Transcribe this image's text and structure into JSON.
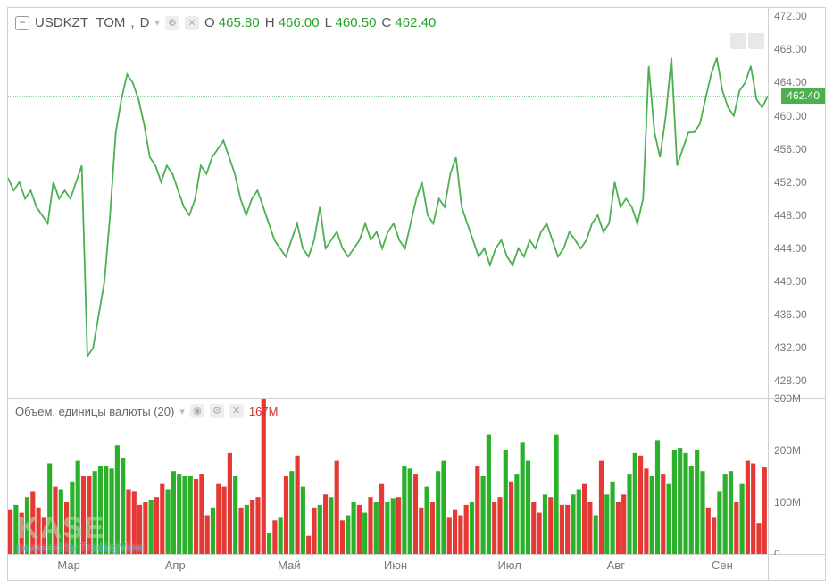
{
  "symbol": {
    "name": "USDKZT_TOM",
    "interval": "D",
    "ohlc": {
      "O": "465.80",
      "H": "466.00",
      "L": "460.50",
      "C": "462.40"
    }
  },
  "price_chart": {
    "type": "line",
    "line_color": "#4caf50",
    "line_width": 1.8,
    "background_color": "#ffffff",
    "ylim": [
      426,
      473
    ],
    "ytick_step": 4,
    "yticks": [
      "428.00",
      "432.00",
      "436.00",
      "440.00",
      "444.00",
      "448.00",
      "452.00",
      "456.00",
      "460.00",
      "464.00",
      "468.00",
      "472.00"
    ],
    "current_price": 462.4,
    "ref_line_color": "#4caf50",
    "price_tag_bg": "#4caf50",
    "price_tag_text": "462.40",
    "xticks": [
      "Мар",
      "Апр",
      "Май",
      "Июн",
      "Июл",
      "Авг",
      "Сен"
    ],
    "series": [
      452.5,
      451,
      452,
      450,
      451,
      449,
      448,
      447,
      452,
      450,
      451,
      450,
      452,
      454,
      431,
      432,
      436,
      440,
      448,
      458,
      462,
      465,
      464,
      462,
      459,
      455,
      454,
      452,
      454,
      453,
      451,
      449,
      448,
      450,
      454,
      453,
      455,
      456,
      457,
      455,
      453,
      450,
      448,
      450,
      451,
      449,
      447,
      445,
      444,
      443,
      445,
      447,
      444,
      443,
      445,
      449,
      444,
      445,
      446,
      444,
      443,
      444,
      445,
      447,
      445,
      446,
      444,
      446,
      447,
      445,
      444,
      447,
      450,
      452,
      448,
      447,
      450,
      449,
      453,
      455,
      449,
      447,
      445,
      443,
      444,
      442,
      444,
      445,
      443,
      442,
      444,
      443,
      445,
      444,
      446,
      447,
      445,
      443,
      444,
      446,
      445,
      444,
      445,
      447,
      448,
      446,
      447,
      452,
      449,
      450,
      449,
      447,
      450,
      466,
      458,
      455,
      460,
      467,
      454,
      456,
      458,
      458,
      459,
      462,
      465,
      467,
      463,
      461,
      460,
      463,
      464,
      466,
      462,
      461,
      462.4
    ]
  },
  "volume_panel": {
    "title": "Объем, единицы валюты (20)",
    "current_value_label": "167M",
    "value_color": "#d32f2f",
    "ylim": [
      0,
      300
    ],
    "yticks": [
      "0",
      "100M",
      "200M",
      "300M"
    ],
    "up_color": "#2bb02b",
    "down_color": "#e53935",
    "bars": [
      {
        "v": 85,
        "c": "d"
      },
      {
        "v": 95,
        "c": "u"
      },
      {
        "v": 80,
        "c": "d"
      },
      {
        "v": 110,
        "c": "u"
      },
      {
        "v": 120,
        "c": "d"
      },
      {
        "v": 90,
        "c": "d"
      },
      {
        "v": 70,
        "c": "d"
      },
      {
        "v": 175,
        "c": "u"
      },
      {
        "v": 130,
        "c": "d"
      },
      {
        "v": 125,
        "c": "u"
      },
      {
        "v": 100,
        "c": "d"
      },
      {
        "v": 140,
        "c": "u"
      },
      {
        "v": 180,
        "c": "u"
      },
      {
        "v": 150,
        "c": "d"
      },
      {
        "v": 150,
        "c": "d"
      },
      {
        "v": 160,
        "c": "u"
      },
      {
        "v": 170,
        "c": "u"
      },
      {
        "v": 170,
        "c": "u"
      },
      {
        "v": 165,
        "c": "u"
      },
      {
        "v": 210,
        "c": "u"
      },
      {
        "v": 185,
        "c": "u"
      },
      {
        "v": 125,
        "c": "d"
      },
      {
        "v": 120,
        "c": "d"
      },
      {
        "v": 95,
        "c": "d"
      },
      {
        "v": 100,
        "c": "d"
      },
      {
        "v": 105,
        "c": "u"
      },
      {
        "v": 110,
        "c": "d"
      },
      {
        "v": 135,
        "c": "d"
      },
      {
        "v": 125,
        "c": "u"
      },
      {
        "v": 160,
        "c": "u"
      },
      {
        "v": 155,
        "c": "u"
      },
      {
        "v": 150,
        "c": "u"
      },
      {
        "v": 150,
        "c": "u"
      },
      {
        "v": 145,
        "c": "d"
      },
      {
        "v": 155,
        "c": "d"
      },
      {
        "v": 75,
        "c": "d"
      },
      {
        "v": 90,
        "c": "u"
      },
      {
        "v": 135,
        "c": "d"
      },
      {
        "v": 130,
        "c": "d"
      },
      {
        "v": 195,
        "c": "d"
      },
      {
        "v": 150,
        "c": "u"
      },
      {
        "v": 90,
        "c": "d"
      },
      {
        "v": 95,
        "c": "u"
      },
      {
        "v": 105,
        "c": "d"
      },
      {
        "v": 110,
        "c": "d"
      },
      {
        "v": 300,
        "c": "d"
      },
      {
        "v": 40,
        "c": "u"
      },
      {
        "v": 65,
        "c": "d"
      },
      {
        "v": 70,
        "c": "u"
      },
      {
        "v": 150,
        "c": "d"
      },
      {
        "v": 160,
        "c": "u"
      },
      {
        "v": 190,
        "c": "d"
      },
      {
        "v": 130,
        "c": "u"
      },
      {
        "v": 35,
        "c": "d"
      },
      {
        "v": 90,
        "c": "d"
      },
      {
        "v": 95,
        "c": "u"
      },
      {
        "v": 115,
        "c": "d"
      },
      {
        "v": 110,
        "c": "u"
      },
      {
        "v": 180,
        "c": "d"
      },
      {
        "v": 65,
        "c": "d"
      },
      {
        "v": 75,
        "c": "u"
      },
      {
        "v": 100,
        "c": "u"
      },
      {
        "v": 95,
        "c": "d"
      },
      {
        "v": 80,
        "c": "u"
      },
      {
        "v": 110,
        "c": "d"
      },
      {
        "v": 100,
        "c": "u"
      },
      {
        "v": 135,
        "c": "d"
      },
      {
        "v": 100,
        "c": "u"
      },
      {
        "v": 108,
        "c": "u"
      },
      {
        "v": 110,
        "c": "d"
      },
      {
        "v": 170,
        "c": "u"
      },
      {
        "v": 165,
        "c": "u"
      },
      {
        "v": 155,
        "c": "d"
      },
      {
        "v": 90,
        "c": "d"
      },
      {
        "v": 130,
        "c": "u"
      },
      {
        "v": 100,
        "c": "d"
      },
      {
        "v": 160,
        "c": "u"
      },
      {
        "v": 180,
        "c": "u"
      },
      {
        "v": 70,
        "c": "d"
      },
      {
        "v": 85,
        "c": "d"
      },
      {
        "v": 75,
        "c": "d"
      },
      {
        "v": 95,
        "c": "d"
      },
      {
        "v": 100,
        "c": "u"
      },
      {
        "v": 170,
        "c": "d"
      },
      {
        "v": 150,
        "c": "u"
      },
      {
        "v": 230,
        "c": "u"
      },
      {
        "v": 100,
        "c": "d"
      },
      {
        "v": 110,
        "c": "d"
      },
      {
        "v": 200,
        "c": "u"
      },
      {
        "v": 140,
        "c": "d"
      },
      {
        "v": 155,
        "c": "u"
      },
      {
        "v": 215,
        "c": "u"
      },
      {
        "v": 180,
        "c": "u"
      },
      {
        "v": 100,
        "c": "d"
      },
      {
        "v": 80,
        "c": "d"
      },
      {
        "v": 115,
        "c": "u"
      },
      {
        "v": 110,
        "c": "d"
      },
      {
        "v": 230,
        "c": "u"
      },
      {
        "v": 95,
        "c": "d"
      },
      {
        "v": 95,
        "c": "d"
      },
      {
        "v": 115,
        "c": "u"
      },
      {
        "v": 125,
        "c": "u"
      },
      {
        "v": 135,
        "c": "d"
      },
      {
        "v": 100,
        "c": "d"
      },
      {
        "v": 75,
        "c": "u"
      },
      {
        "v": 180,
        "c": "d"
      },
      {
        "v": 115,
        "c": "u"
      },
      {
        "v": 140,
        "c": "u"
      },
      {
        "v": 100,
        "c": "d"
      },
      {
        "v": 115,
        "c": "d"
      },
      {
        "v": 155,
        "c": "u"
      },
      {
        "v": 195,
        "c": "u"
      },
      {
        "v": 190,
        "c": "d"
      },
      {
        "v": 165,
        "c": "d"
      },
      {
        "v": 150,
        "c": "u"
      },
      {
        "v": 220,
        "c": "u"
      },
      {
        "v": 155,
        "c": "d"
      },
      {
        "v": 135,
        "c": "u"
      },
      {
        "v": 200,
        "c": "u"
      },
      {
        "v": 205,
        "c": "u"
      },
      {
        "v": 195,
        "c": "u"
      },
      {
        "v": 170,
        "c": "u"
      },
      {
        "v": 200,
        "c": "u"
      },
      {
        "v": 160,
        "c": "u"
      },
      {
        "v": 90,
        "c": "d"
      },
      {
        "v": 70,
        "c": "d"
      },
      {
        "v": 120,
        "c": "u"
      },
      {
        "v": 155,
        "c": "u"
      },
      {
        "v": 160,
        "c": "u"
      },
      {
        "v": 100,
        "c": "d"
      },
      {
        "v": 135,
        "c": "u"
      },
      {
        "v": 180,
        "c": "d"
      },
      {
        "v": 175,
        "c": "d"
      },
      {
        "v": 60,
        "c": "d"
      },
      {
        "v": 167,
        "c": "d"
      }
    ]
  },
  "watermark": {
    "brand": "KASE",
    "powered": "powered by TradingView"
  },
  "colors": {
    "axis_text": "#777777",
    "border": "#d0d0d0",
    "green": "#26a32a"
  }
}
